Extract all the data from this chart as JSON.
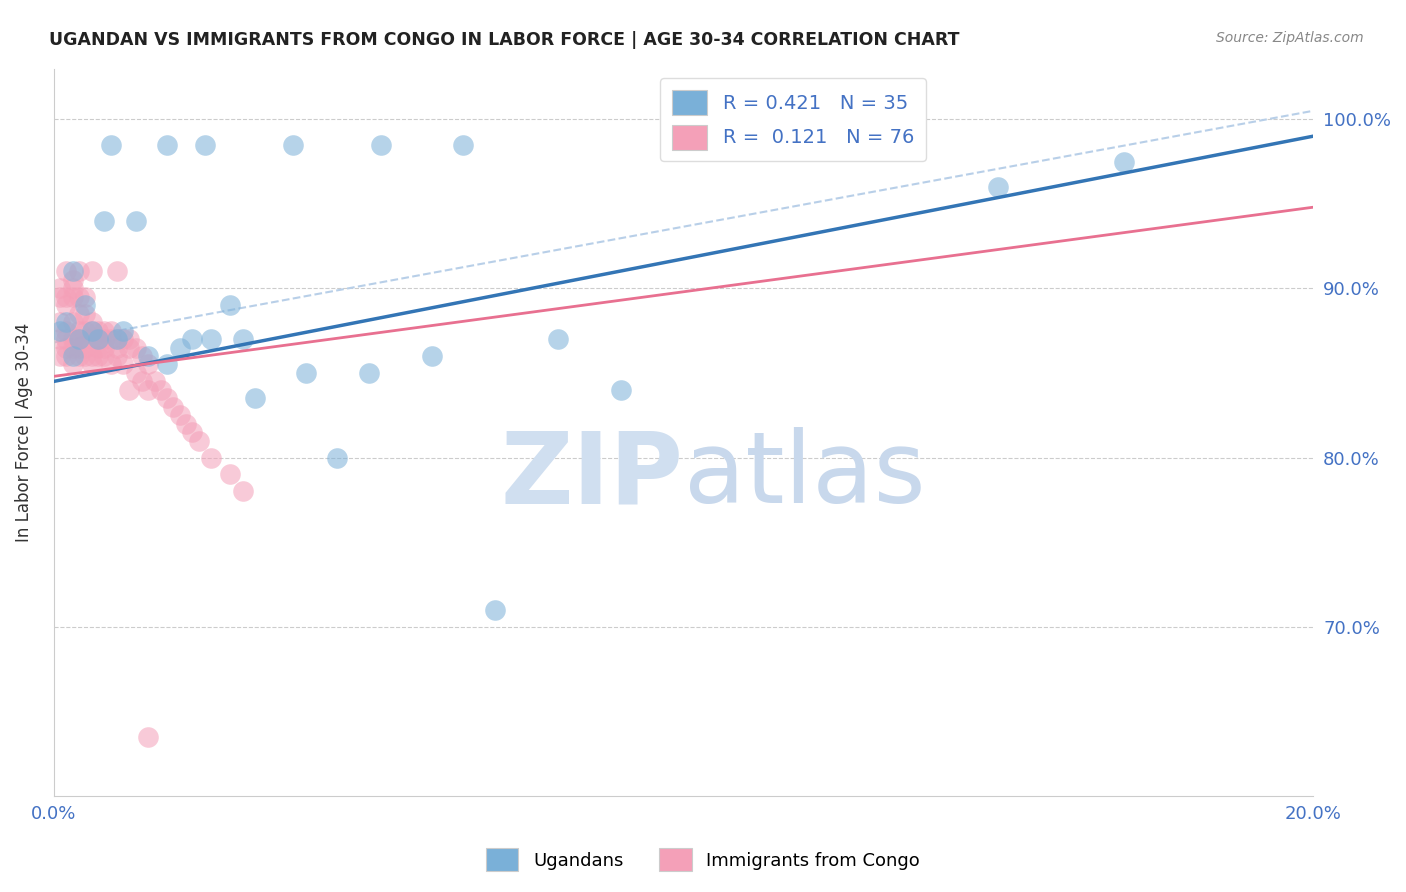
{
  "title": "UGANDAN VS IMMIGRANTS FROM CONGO IN LABOR FORCE | AGE 30-34 CORRELATION CHART",
  "source": "Source: ZipAtlas.com",
  "ylabel": "In Labor Force | Age 30-34",
  "xlim": [
    0.0,
    0.2
  ],
  "ylim": [
    0.6,
    1.03
  ],
  "ytick_values": [
    0.7,
    0.8,
    0.9,
    1.0
  ],
  "xtick_values": [
    0.0,
    0.2
  ],
  "legend_bottom": [
    "Ugandans",
    "Immigrants from Congo"
  ],
  "ugandan_color": "#7ab0d8",
  "congo_color": "#f4a0b8",
  "ugandan_line_color": "#3375b5",
  "congo_line_color": "#e87090",
  "dashed_line_color": "#b8cfe8",
  "watermark_zip": "ZIP",
  "watermark_atlas": "atlas",
  "R_ugandan": 0.421,
  "N_ugandan": 35,
  "R_congo": 0.121,
  "N_congo": 76,
  "ugandan_line_x0": 0.0,
  "ugandan_line_y0": 0.845,
  "ugandan_line_x1": 0.2,
  "ugandan_line_y1": 0.99,
  "congo_line_x0": 0.0,
  "congo_line_y0": 0.848,
  "congo_line_x1": 0.05,
  "congo_line_y1": 0.873,
  "dashed_line_x0": 0.0,
  "dashed_line_y0": 0.868,
  "dashed_line_x1": 0.2,
  "dashed_line_y1": 1.005,
  "ugandan_x": [
    0.001,
    0.002,
    0.003,
    0.003,
    0.004,
    0.005,
    0.006,
    0.007,
    0.008,
    0.01,
    0.011,
    0.013,
    0.015,
    0.018,
    0.02,
    0.022,
    0.025,
    0.028,
    0.03,
    0.032,
    0.04,
    0.045,
    0.05,
    0.06,
    0.07,
    0.08,
    0.09,
    0.15,
    0.17,
    0.009,
    0.018,
    0.024,
    0.038,
    0.052,
    0.065
  ],
  "ugandan_y": [
    0.875,
    0.88,
    0.86,
    0.91,
    0.87,
    0.89,
    0.875,
    0.87,
    0.94,
    0.87,
    0.875,
    0.94,
    0.86,
    0.855,
    0.865,
    0.87,
    0.87,
    0.89,
    0.87,
    0.835,
    0.85,
    0.8,
    0.85,
    0.86,
    0.71,
    0.87,
    0.84,
    0.96,
    0.975,
    0.985,
    0.985,
    0.985,
    0.985,
    0.985,
    0.985
  ],
  "congo_x": [
    0.001,
    0.001,
    0.001,
    0.001,
    0.001,
    0.002,
    0.002,
    0.002,
    0.002,
    0.002,
    0.002,
    0.002,
    0.003,
    0.003,
    0.003,
    0.003,
    0.003,
    0.003,
    0.003,
    0.004,
    0.004,
    0.004,
    0.004,
    0.004,
    0.004,
    0.004,
    0.005,
    0.005,
    0.005,
    0.005,
    0.005,
    0.005,
    0.006,
    0.006,
    0.006,
    0.006,
    0.006,
    0.006,
    0.007,
    0.007,
    0.007,
    0.007,
    0.008,
    0.008,
    0.008,
    0.008,
    0.009,
    0.009,
    0.009,
    0.01,
    0.01,
    0.01,
    0.01,
    0.011,
    0.011,
    0.012,
    0.012,
    0.012,
    0.013,
    0.013,
    0.014,
    0.014,
    0.015,
    0.015,
    0.016,
    0.017,
    0.018,
    0.019,
    0.02,
    0.021,
    0.022,
    0.023,
    0.025,
    0.028,
    0.03,
    0.015
  ],
  "congo_y": [
    0.88,
    0.87,
    0.86,
    0.9,
    0.895,
    0.89,
    0.875,
    0.87,
    0.865,
    0.895,
    0.86,
    0.91,
    0.88,
    0.87,
    0.865,
    0.855,
    0.9,
    0.895,
    0.905,
    0.875,
    0.87,
    0.865,
    0.86,
    0.91,
    0.895,
    0.885,
    0.875,
    0.87,
    0.865,
    0.86,
    0.895,
    0.885,
    0.88,
    0.875,
    0.87,
    0.86,
    0.855,
    0.91,
    0.875,
    0.87,
    0.865,
    0.86,
    0.875,
    0.87,
    0.865,
    0.86,
    0.875,
    0.87,
    0.855,
    0.87,
    0.865,
    0.86,
    0.91,
    0.87,
    0.855,
    0.87,
    0.865,
    0.84,
    0.865,
    0.85,
    0.86,
    0.845,
    0.855,
    0.84,
    0.845,
    0.84,
    0.835,
    0.83,
    0.825,
    0.82,
    0.815,
    0.81,
    0.8,
    0.79,
    0.78,
    0.635
  ]
}
